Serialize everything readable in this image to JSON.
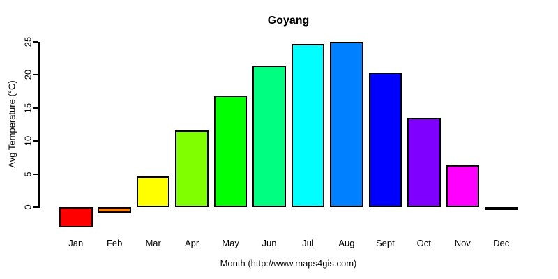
{
  "chart_data": {
    "type": "bar",
    "title": "Goyang",
    "xlabel": "Month (http://www.maps4gis.com)",
    "ylabel": "Avg Temperature (°C)",
    "categories": [
      "Jan",
      "Feb",
      "Mar",
      "Apr",
      "May",
      "Jun",
      "Jul",
      "Aug",
      "Sept",
      "Oct",
      "Nov",
      "Dec"
    ],
    "values": [
      -3.1,
      -0.8,
      4.6,
      11.6,
      16.8,
      21.4,
      24.6,
      25.0,
      20.3,
      13.5,
      6.3,
      -0.4
    ],
    "bar_colors": [
      "#FF0000",
      "#FF8000",
      "#FFFF00",
      "#80FF00",
      "#00FF00",
      "#00FF80",
      "#00FFFF",
      "#0080FF",
      "#0000FF",
      "#8000FF",
      "#FF00FF",
      "#FF0080"
    ],
    "bar_border_color": "#000000",
    "yticks": [
      0,
      5,
      10,
      15,
      20,
      25
    ],
    "ylim": [
      0,
      25
    ],
    "axis_color": "#000000",
    "text_color": "#000000",
    "background_color": "#FFFFFF",
    "grid": false,
    "legend": "none"
  }
}
